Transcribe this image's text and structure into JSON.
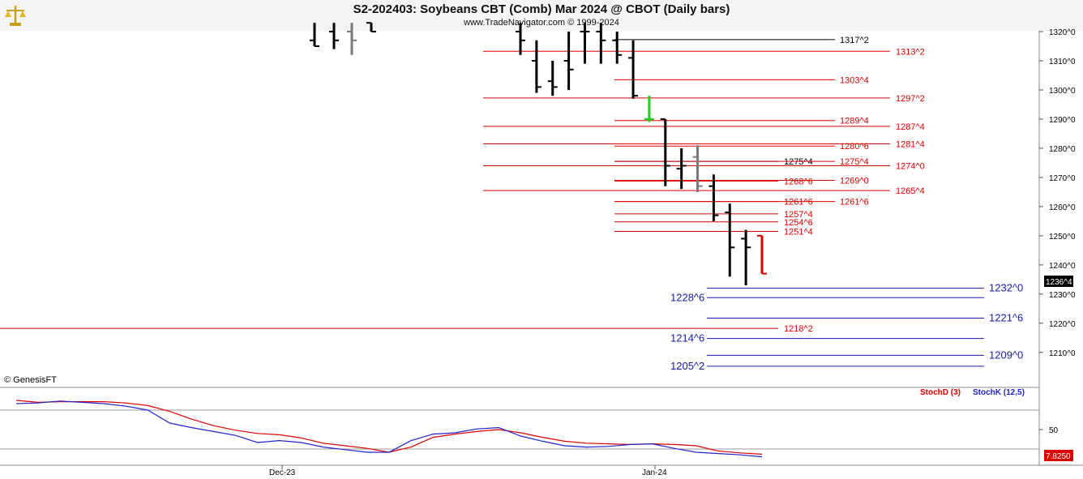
{
  "header": {
    "title": "S2-202403:  Soybeans CBT (Comb) Mar 2024 @ CBOT  (Daily bars)",
    "subtitle": "www.TradeNavigator.com © 1999-2024",
    "logo_icon": "scales-logo-icon"
  },
  "copyright": "© GenesisFT",
  "last_price_tag": "1236^4",
  "stoch_value_tag": "7.8250",
  "chart_data": [
    {
      "type": "ohlc",
      "price_y_ticks": [
        "1320^0",
        "1310^0",
        "1300^0",
        "1290^0",
        "1280^0",
        "1270^0",
        "1260^0",
        "1250^0",
        "1240^0",
        "1230^0",
        "1220^0",
        "1210^0"
      ],
      "price_y_values": [
        1320,
        1310,
        1300,
        1290,
        1280,
        1270,
        1260,
        1250,
        1240,
        1230,
        1220,
        1210
      ],
      "ylim": [
        1202,
        1323
      ],
      "x_tick_labels": [
        "Dec-23",
        "Jan-24"
      ],
      "grid": false,
      "colors": {
        "up": "#000000",
        "gray": "#7a7a7a",
        "green": "#22cc22",
        "red": "#dd0000",
        "level_red": "#dd0000",
        "level_blue": "#1a1aaa",
        "level_black": "#000000"
      },
      "bars": [
        {
          "h": 1323,
          "l": 1315,
          "c": 1315,
          "color": "black"
        },
        {
          "h": 1323,
          "l": 1314,
          "c": 1317,
          "color": "black"
        },
        {
          "h": 1323,
          "l": 1312,
          "c": 1317,
          "color": "gray"
        },
        {
          "h": 1323,
          "l": 1320,
          "c": 1320,
          "color": "black"
        },
        {
          "h": 1323,
          "l": 1312,
          "c": 1317,
          "color": "black"
        },
        {
          "h": 1317,
          "l": 1299,
          "c": 1301,
          "color": "black"
        },
        {
          "h": 1310,
          "l": 1298,
          "c": 1301,
          "color": "black"
        },
        {
          "h": 1320,
          "l": 1300,
          "c": 1307,
          "color": "black"
        },
        {
          "h": 1323,
          "l": 1309,
          "c": 1320,
          "color": "black"
        },
        {
          "h": 1323,
          "l": 1309,
          "c": 1317,
          "color": "black"
        },
        {
          "h": 1320,
          "l": 1309,
          "c": 1312,
          "color": "black"
        },
        {
          "h": 1317,
          "l": 1297,
          "c": 1298,
          "color": "black"
        },
        {
          "h": 1298,
          "l": 1289,
          "c": 1290,
          "color": "green"
        },
        {
          "h": 1290,
          "l": 1267,
          "c": 1274,
          "color": "black"
        },
        {
          "h": 1280,
          "l": 1266,
          "c": 1274,
          "color": "black"
        },
        {
          "h": 1281,
          "l": 1265,
          "c": 1267,
          "color": "gray"
        },
        {
          "h": 1271,
          "l": 1255,
          "c": 1257,
          "color": "black"
        },
        {
          "h": 1261,
          "l": 1236,
          "c": 1246,
          "color": "black"
        },
        {
          "h": 1252,
          "l": 1233,
          "c": 1246,
          "color": "black"
        },
        {
          "h": 1250,
          "l": 1237,
          "c": 1237,
          "color": "red"
        }
      ],
      "bar_open_ticks": [
        1317,
        1320,
        1320,
        1323,
        1320,
        1310,
        1303,
        1310,
        1320,
        1320,
        1317,
        1311,
        1290,
        1290,
        1273,
        1277,
        1267,
        1258,
        1249,
        1250
      ],
      "levels": [
        {
          "label": "1317^2",
          "value": 1317.25,
          "color": "black",
          "side": "right-far"
        },
        {
          "label": "1313^2",
          "value": 1313.25,
          "color": "red",
          "side": "right"
        },
        {
          "label": "1303^4",
          "value": 1303.5,
          "color": "red",
          "side": "right-far"
        },
        {
          "label": "1297^2",
          "value": 1297.25,
          "color": "red",
          "side": "right"
        },
        {
          "label": "1289^4",
          "value": 1289.5,
          "color": "red",
          "side": "right-far"
        },
        {
          "label": "1287^4",
          "value": 1287.5,
          "color": "red",
          "side": "right"
        },
        {
          "label": "1280^6",
          "value": 1280.75,
          "color": "red",
          "side": "right-far"
        },
        {
          "label": "1281^4",
          "value": 1281.5,
          "color": "red",
          "side": "right"
        },
        {
          "label": "1275^4",
          "value": 1275.5,
          "color": "black",
          "side": "mid"
        },
        {
          "label": "1275^4",
          "value": 1275.5,
          "color": "red",
          "side": "right-far"
        },
        {
          "label": "1274^0",
          "value": 1274.0,
          "color": "red",
          "side": "right"
        },
        {
          "label": "1268^6",
          "value": 1268.75,
          "color": "red",
          "side": "mid"
        },
        {
          "label": "1269^0",
          "value": 1269.0,
          "color": "red",
          "side": "right-far"
        },
        {
          "label": "1265^4",
          "value": 1265.5,
          "color": "red",
          "side": "right"
        },
        {
          "label": "1261^6",
          "value": 1261.75,
          "color": "red",
          "side": "mid"
        },
        {
          "label": "1261^6",
          "value": 1261.75,
          "color": "red",
          "side": "right-far"
        },
        {
          "label": "1257^4",
          "value": 1257.5,
          "color": "red",
          "side": "mid"
        },
        {
          "label": "1254^6",
          "value": 1254.75,
          "color": "red",
          "side": "mid"
        },
        {
          "label": "1251^4",
          "value": 1251.5,
          "color": "red",
          "side": "mid"
        },
        {
          "label": "1232^0",
          "value": 1232.0,
          "color": "blue",
          "side": "blue-right"
        },
        {
          "label": "1228^6",
          "value": 1228.75,
          "color": "blue",
          "side": "blue-left"
        },
        {
          "label": "1221^6",
          "value": 1221.75,
          "color": "blue",
          "side": "blue-right"
        },
        {
          "label": "1218^2",
          "value": 1218.25,
          "color": "red",
          "side": "full"
        },
        {
          "label": "1214^6",
          "value": 1214.75,
          "color": "blue",
          "side": "blue-left"
        },
        {
          "label": "1209^0",
          "value": 1209.0,
          "color": "blue",
          "side": "blue-right"
        },
        {
          "label": "1205^2",
          "value": 1205.25,
          "color": "blue",
          "side": "blue-left"
        }
      ]
    },
    {
      "type": "line",
      "series": [
        {
          "name": "StochD (3)",
          "color": "#dd0000",
          "values": [
            95,
            92,
            93,
            93,
            93,
            91,
            87,
            78,
            66,
            56,
            49,
            44,
            42,
            37,
            29,
            25,
            21,
            15,
            23,
            38,
            43,
            47,
            50,
            45,
            38,
            32,
            29,
            28,
            27,
            28,
            27,
            25,
            17,
            14,
            12
          ]
        },
        {
          "name": "StochK (12,5)",
          "color": "#2222cc",
          "values": [
            90,
            91,
            94,
            92,
            90,
            86,
            80,
            60,
            53,
            47,
            41,
            30,
            33,
            30,
            23,
            19,
            15,
            15,
            33,
            43,
            45,
            51,
            53,
            40,
            32,
            25,
            23,
            24,
            27,
            28,
            21,
            15,
            13,
            11,
            8
          ]
        }
      ],
      "y_ticks": [
        "50"
      ],
      "ref_lines": [
        80,
        20
      ],
      "ylim": [
        0,
        100
      ]
    }
  ]
}
